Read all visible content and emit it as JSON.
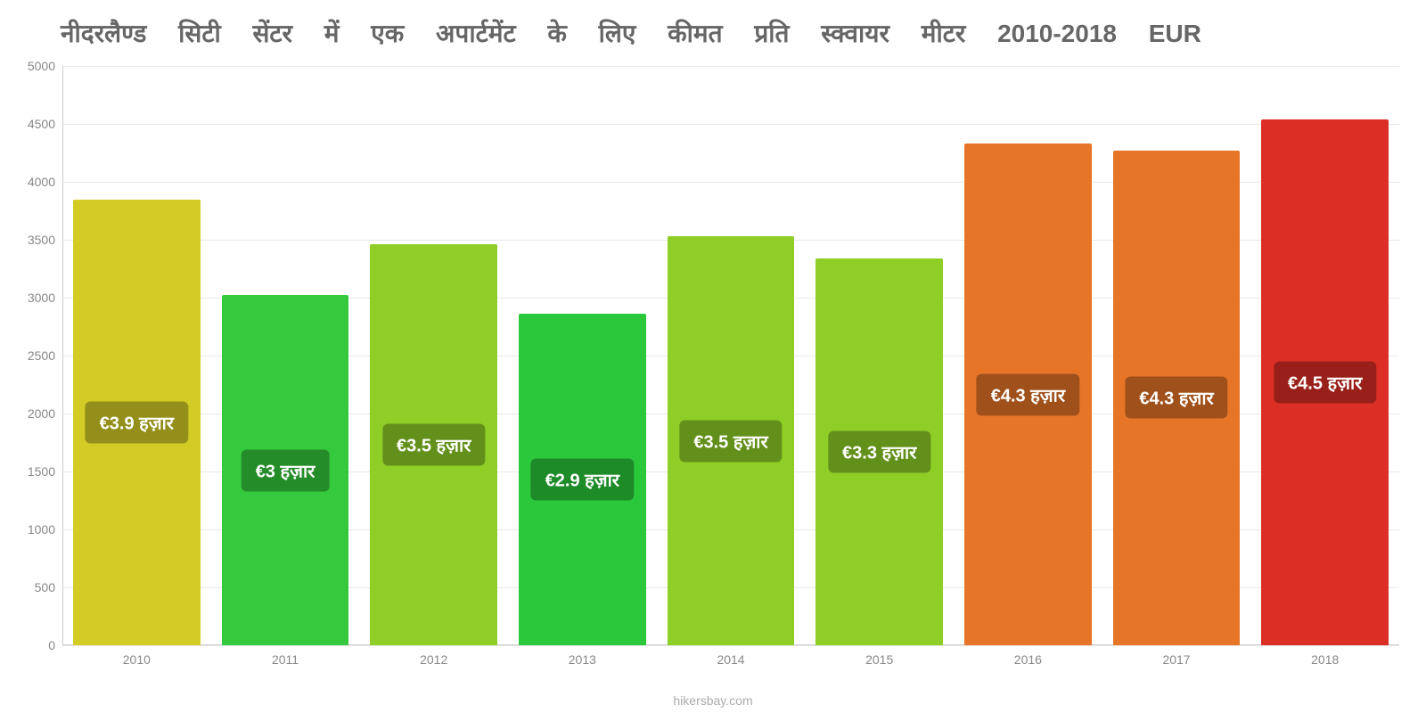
{
  "chart": {
    "type": "bar",
    "title": "नीदरलैण्ड सिटी सेंटर में एक अपार्टमेंट के लिए कीमत प्रति स्क्वायर मीटर 2010-2018 EUR",
    "title_color": "#666666",
    "title_fontsize": 28,
    "background_color": "#ffffff",
    "grid_color": "#e8e8e8",
    "axis_color": "#cccccc",
    "label_color": "#888888",
    "label_fontsize": 14,
    "ylim": [
      0,
      5000
    ],
    "ytick_step": 500,
    "yticks": [
      0,
      500,
      1000,
      1500,
      2000,
      2500,
      3000,
      3500,
      4000,
      4500,
      5000
    ],
    "categories": [
      "2010",
      "2011",
      "2012",
      "2013",
      "2014",
      "2015",
      "2016",
      "2017",
      "2018"
    ],
    "values": [
      3850,
      3020,
      3460,
      2860,
      3530,
      3340,
      4330,
      4270,
      4540
    ],
    "bar_labels": [
      "€3.9 हज़ार",
      "€3 हज़ार",
      "€3.5 हज़ार",
      "€2.9 हज़ार",
      "€3.5 हज़ार",
      "€3.3 हज़ार",
      "€4.3 हज़ार",
      "€4.3 हज़ार",
      "€4.5 हज़ार"
    ],
    "bar_colors": [
      "#d4cc26",
      "#35c93d",
      "#8fce27",
      "#2bc83c",
      "#8fce27",
      "#8fce27",
      "#e67528",
      "#e67528",
      "#db2f26"
    ],
    "badge_background": "rgba(0,0,0,0.3)",
    "badge_text_color": "#ffffff",
    "badge_fontsize": 20,
    "source": "hikersbay.com",
    "source_color": "#aaaaaa"
  }
}
